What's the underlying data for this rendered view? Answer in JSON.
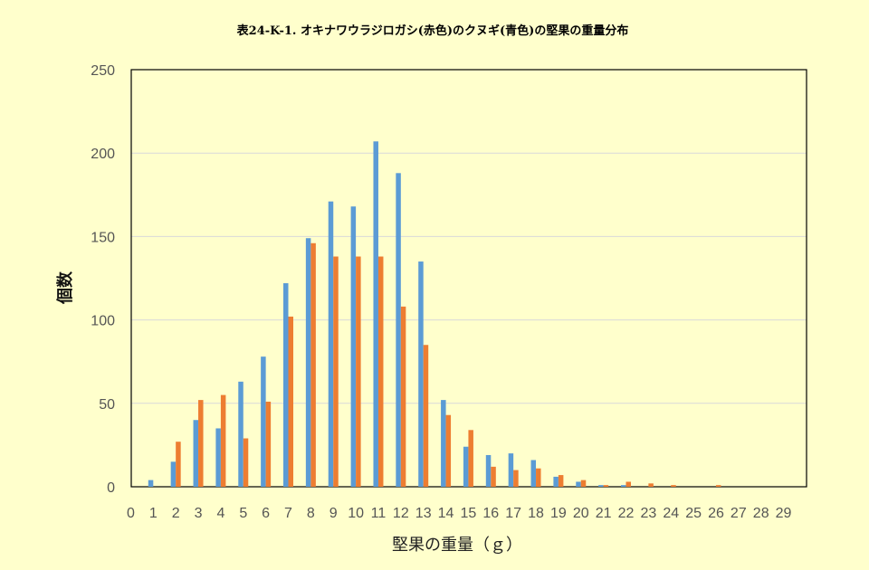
{
  "chart_data": {
    "type": "bar",
    "title": "表24-K-1. オキナワウラジロガシ(赤色)のクヌギ(青色)の堅果の重量分布",
    "xlabel": "堅果の重量（ｇ）",
    "ylabel": "個数",
    "ylim": [
      0,
      250
    ],
    "yticks": [
      0,
      50,
      100,
      150,
      200,
      250
    ],
    "categories": [
      "0",
      "1",
      "2",
      "3",
      "4",
      "5",
      "6",
      "7",
      "8",
      "9",
      "10",
      "11",
      "12",
      "13",
      "14",
      "15",
      "16",
      "17",
      "18",
      "19",
      "20",
      "21",
      "22",
      "23",
      "24",
      "25",
      "26",
      "27",
      "28",
      "29"
    ],
    "grid": true,
    "legend": "none",
    "series": [
      {
        "color": "#5b9bd5",
        "values": [
          0,
          4,
          15,
          40,
          35,
          63,
          78,
          122,
          149,
          171,
          168,
          207,
          188,
          135,
          52,
          24,
          19,
          20,
          16,
          6,
          3,
          1,
          1,
          0,
          0,
          0,
          0,
          0,
          0,
          0
        ]
      },
      {
        "color": "#ed7d31",
        "values": [
          0,
          0,
          27,
          52,
          55,
          29,
          51,
          102,
          146,
          138,
          138,
          138,
          108,
          85,
          43,
          34,
          12,
          10,
          11,
          7,
          4,
          1,
          3,
          2,
          1,
          0,
          1,
          0,
          0,
          0
        ]
      }
    ],
    "plot_background": "#ffffcc",
    "grid_color": "#d9d9d9"
  }
}
